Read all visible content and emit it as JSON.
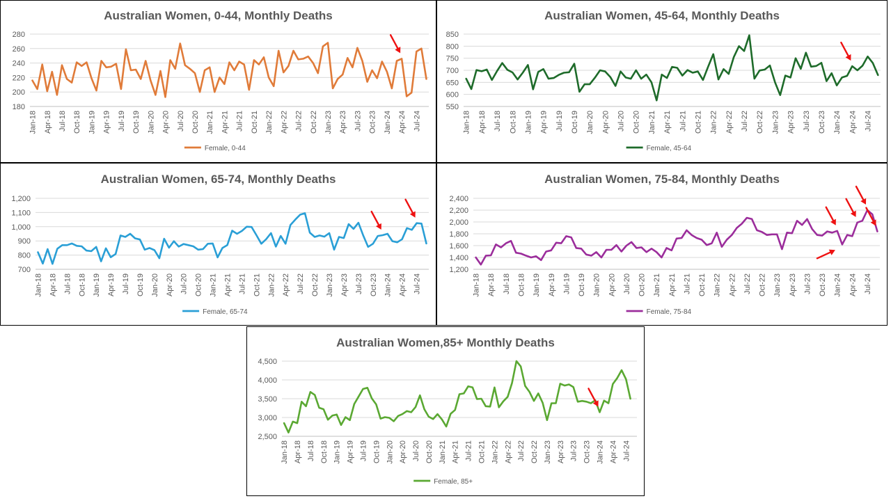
{
  "chart_data": [
    {
      "type": "line",
      "title": "Australian Women, 0-44, Monthly Deaths",
      "color": "#E07B39",
      "legend_position": "bottom",
      "ylim": [
        180,
        280
      ],
      "yticks": [
        180,
        200,
        220,
        240,
        260,
        280
      ],
      "ytick_labels": [
        "180",
        "200",
        "220",
        "240",
        "260",
        "280"
      ],
      "x_tick_labels": [
        "Jan-18",
        "Apr-18",
        "Jul-18",
        "Oct-18",
        "Jan-19",
        "Apr-19",
        "Jul-19",
        "Oct-19",
        "Jan-20",
        "Apr-20",
        "Jul-20",
        "Oct-20",
        "Jan-21",
        "Apr-21",
        "Jul-21",
        "Oct-21",
        "Jan-22",
        "Apr-22",
        "Jul-22",
        "Oct-22",
        "Jan-23",
        "Apr-23",
        "Jul-23",
        "Oct-23",
        "Jan-24",
        "Apr-24",
        "Jul-24"
      ],
      "series": [
        {
          "name": "Female, 0-44",
          "values": [
            216,
            204,
            238,
            201,
            228,
            196,
            237,
            218,
            213,
            241,
            236,
            241,
            219,
            202,
            243,
            234,
            235,
            239,
            204,
            259,
            230,
            231,
            218,
            243,
            216,
            196,
            229,
            193,
            244,
            232,
            267,
            237,
            232,
            226,
            200,
            230,
            234,
            200,
            220,
            211,
            241,
            230,
            242,
            238,
            203,
            244,
            238,
            248,
            220,
            208,
            257,
            227,
            236,
            257,
            245,
            246,
            249,
            240,
            226,
            263,
            268,
            205,
            218,
            224,
            247,
            234,
            261,
            243,
            214,
            230,
            219,
            242,
            228,
            205,
            243,
            246,
            194,
            199,
            256,
            260,
            218
          ],
          "values_note": ""
        }
      ],
      "arrows": [
        {
          "index": 75
        }
      ]
    },
    {
      "type": "line",
      "title": "Australian Women, 45-64, Monthly Deaths",
      "color": "#1E6B2A",
      "legend_position": "bottom",
      "ylim": [
        550,
        850
      ],
      "yticks": [
        550,
        600,
        650,
        700,
        750,
        800,
        850
      ],
      "ytick_labels": [
        "550",
        "600",
        "650",
        "700",
        "750",
        "800",
        "850"
      ],
      "x_tick_labels": [
        "Jan-18",
        "Apr-18",
        "Jul-18",
        "Oct-18",
        "Jan-19",
        "Apr-19",
        "Jul-19",
        "Oct-19",
        "Jan-20",
        "Apr-20",
        "Jul-20",
        "Oct-20",
        "Jan-21",
        "Apr-21",
        "Jul-21",
        "Oct-21",
        "Jan-22",
        "Apr-22",
        "Jul-22",
        "Oct-22",
        "Jan-23",
        "Apr-23",
        "Jul-23",
        "Oct-23",
        "Jan-24",
        "Apr-24",
        "Jul-24"
      ],
      "series": [
        {
          "name": "Female, 45-64",
          "values": [
            665,
            622,
            701,
            696,
            703,
            660,
            697,
            730,
            702,
            691,
            662,
            690,
            722,
            621,
            693,
            705,
            665,
            668,
            681,
            690,
            692,
            727,
            611,
            642,
            642,
            669,
            700,
            695,
            672,
            635,
            695,
            670,
            665,
            700,
            665,
            682,
            650,
            575,
            682,
            668,
            714,
            710,
            678,
            701,
            690,
            695,
            660,
            715,
            767,
            662,
            705,
            685,
            755,
            800,
            780,
            845,
            665,
            699,
            703,
            720,
            650,
            597,
            678,
            670,
            750,
            706,
            773,
            715,
            718,
            731,
            655,
            688,
            637,
            670,
            677,
            717,
            700,
            719,
            757,
            730,
            680
          ]
        }
      ],
      "arrows": [
        {
          "index": 75
        }
      ]
    },
    {
      "type": "line",
      "title": "Australian Women, 65-74, Monthly Deaths",
      "color": "#2A9FD6",
      "legend_position": "bottom",
      "ylim": [
        700,
        1200
      ],
      "yticks": [
        700,
        800,
        900,
        1000,
        1100,
        1200
      ],
      "ytick_labels": [
        "700",
        "800",
        "900",
        "1,000",
        "1,100",
        "1,200"
      ],
      "x_tick_labels": [
        "Jan-18",
        "Apr-18",
        "Jul-18",
        "Oct-18",
        "Jan-19",
        "Apr-19",
        "Jul-19",
        "Oct-19",
        "Jan-20",
        "Apr-20",
        "Jul-20",
        "Oct-20",
        "Jan-21",
        "Apr-21",
        "Jul-21",
        "Oct-21",
        "Jan-22",
        "Apr-22",
        "Jul-22",
        "Oct-22",
        "Jan-23",
        "Apr-23",
        "Jul-23",
        "Oct-23",
        "Jan-24",
        "Apr-24",
        "Jul-24"
      ],
      "series": [
        {
          "name": "Female, 65-74",
          "values": [
            820,
            740,
            842,
            738,
            845,
            870,
            870,
            882,
            865,
            862,
            832,
            828,
            858,
            756,
            848,
            785,
            808,
            938,
            928,
            950,
            918,
            910,
            838,
            850,
            835,
            778,
            915,
            852,
            898,
            860,
            878,
            870,
            862,
            838,
            842,
            880,
            882,
            784,
            850,
            870,
            972,
            950,
            970,
            1000,
            998,
            940,
            880,
            912,
            955,
            860,
            935,
            880,
            1012,
            1050,
            1085,
            1095,
            958,
            928,
            938,
            930,
            955,
            838,
            928,
            920,
            1018,
            985,
            1028,
            938,
            858,
            880,
            935,
            940,
            950,
            898,
            890,
            912,
            990,
            978,
            1025,
            1022,
            882
          ]
        }
      ],
      "arrows": [
        {
          "index": 71
        },
        {
          "index": 78
        }
      ]
    },
    {
      "type": "line",
      "title": "Australian Women, 75-84, Monthly Deaths",
      "color": "#9B2D9B",
      "legend_position": "bottom",
      "ylim": [
        1200,
        2400
      ],
      "yticks": [
        1200,
        1400,
        1600,
        1800,
        2000,
        2200,
        2400
      ],
      "ytick_labels": [
        "1,200",
        "1,400",
        "1,600",
        "1,800",
        "2,000",
        "2,200",
        "2,400"
      ],
      "x_tick_labels": [
        "Jan-18",
        "Apr-18",
        "Jul-18",
        "Oct-18",
        "Jan-19",
        "Apr-19",
        "Jul-19",
        "Oct-19",
        "Jan-20",
        "Apr-20",
        "Jul-20",
        "Oct-20",
        "Jan-21",
        "Apr-21",
        "Jul-21",
        "Oct-21",
        "Jan-22",
        "Apr-22",
        "Jul-22",
        "Oct-22",
        "Jan-23",
        "Apr-23",
        "Jul-23",
        "Oct-23",
        "Jan-24",
        "Apr-24",
        "Jul-24"
      ],
      "series": [
        {
          "name": "Female, 75-84",
          "values": [
            1400,
            1280,
            1430,
            1435,
            1620,
            1570,
            1640,
            1680,
            1480,
            1465,
            1430,
            1400,
            1420,
            1355,
            1500,
            1520,
            1650,
            1640,
            1760,
            1740,
            1560,
            1550,
            1450,
            1430,
            1490,
            1400,
            1530,
            1530,
            1610,
            1500,
            1600,
            1660,
            1560,
            1570,
            1490,
            1550,
            1490,
            1400,
            1560,
            1520,
            1720,
            1730,
            1860,
            1780,
            1730,
            1700,
            1610,
            1640,
            1820,
            1580,
            1700,
            1780,
            1900,
            1970,
            2070,
            2050,
            1860,
            1830,
            1780,
            1790,
            1790,
            1540,
            1820,
            1810,
            2020,
            1950,
            2050,
            1880,
            1780,
            1770,
            1840,
            1820,
            1850,
            1620,
            1780,
            1760,
            1990,
            2020,
            2200,
            2130,
            1840
          ]
        }
      ],
      "arrows": [
        {
          "index": 72
        },
        {
          "index": 76
        },
        {
          "index": 78
        },
        {
          "index": 80
        },
        {
          "index": 73,
          "from_left": true
        }
      ]
    },
    {
      "type": "line",
      "title": "Australian Women,85+ Monthly Deaths",
      "color": "#5AA832",
      "legend_position": "bottom",
      "ylim": [
        2500,
        4500
      ],
      "yticks": [
        2500,
        3000,
        3500,
        4000,
        4500
      ],
      "ytick_labels": [
        "2,500",
        "3,000",
        "3,500",
        "4,000",
        "4,500"
      ],
      "x_tick_labels": [
        "Jan-18",
        "Apr-18",
        "Jul-18",
        "Oct-18",
        "Jan-19",
        "Apr-19",
        "Jul-19",
        "Oct-19",
        "Jan-20",
        "Apr-20",
        "Jul-20",
        "Oct-20",
        "Jan-21",
        "Apr-21",
        "Jul-21",
        "Oct-21",
        "Jan-22",
        "Apr-22",
        "Jul-22",
        "Oct-22",
        "Jan-23",
        "Apr-23",
        "Jul-23",
        "Oct-23",
        "Jan-24",
        "Apr-24",
        "Jul-24"
      ],
      "series": [
        {
          "name": "Female, 85+",
          "values": [
            2850,
            2600,
            2890,
            2850,
            3420,
            3300,
            3680,
            3600,
            3260,
            3220,
            2940,
            3050,
            3080,
            2800,
            3010,
            2930,
            3360,
            3560,
            3760,
            3790,
            3510,
            3350,
            2970,
            3010,
            2990,
            2900,
            3040,
            3090,
            3170,
            3140,
            3280,
            3590,
            3220,
            3020,
            2960,
            3090,
            2950,
            2760,
            3100,
            3200,
            3620,
            3640,
            3830,
            3800,
            3490,
            3500,
            3300,
            3290,
            3800,
            3270,
            3430,
            3550,
            3920,
            4500,
            4360,
            3840,
            3680,
            3440,
            3640,
            3390,
            2930,
            3380,
            3380,
            3900,
            3850,
            3880,
            3810,
            3420,
            3440,
            3420,
            3380,
            3460,
            3140,
            3450,
            3380,
            3890,
            4050,
            4260,
            4020,
            3500
          ]
        }
      ],
      "arrows": [
        {
          "index": 72
        }
      ]
    }
  ]
}
